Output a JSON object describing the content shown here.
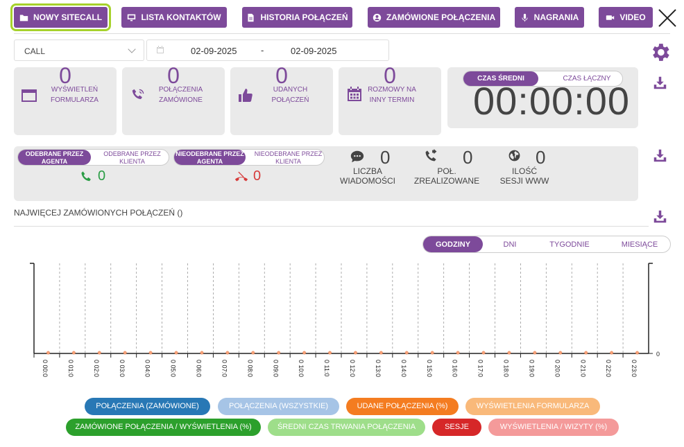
{
  "nav": {
    "new_sitecall": "NOWY SITECALL",
    "contacts": "LISTA KONTAKTÓW",
    "history": "HISTORIA POŁĄCZEŃ",
    "ordered": "ZAMÓWIONE POŁĄCZENIA",
    "recordings": "NAGRANIA",
    "video": "VIDEO"
  },
  "filters": {
    "type_selected": "CALL",
    "date_from": "02-09-2025",
    "date_separator": "-",
    "date_to": "02-09-2025"
  },
  "cards": [
    {
      "value": "0",
      "label": "WYŚWIETLEŃ FORMULARZA"
    },
    {
      "value": "0",
      "label": "POŁĄCZENIA ZAMÓWIONE"
    },
    {
      "value": "0",
      "label": "UDANYCH POŁĄCZEŃ"
    },
    {
      "value": "0",
      "label": "ROZMOWY NA INNY TERMIN"
    }
  ],
  "timer": {
    "avg_label": "CZAS ŚREDNI",
    "total_label": "CZAS ŁĄCZNY",
    "value": "00:00:00"
  },
  "answered": {
    "by_agent": "ODEBRANE PRZEZ AGENTA",
    "by_client": "ODEBRANE PRZEZ KLIENTA",
    "count": "0"
  },
  "unanswered": {
    "by_agent": "NIEODEBRANE PRZEZ AGENTA",
    "by_client": "NIEODEBRANE PRZEZ KLIENTA",
    "count": "0"
  },
  "counters": [
    {
      "value": "0",
      "label": "LICZBA WIADOMOŚCI"
    },
    {
      "value": "0",
      "label": "POŁ. ZREALIZOWANE"
    },
    {
      "value": "0",
      "label": "ILOŚĆ SESJI WWW"
    }
  ],
  "section_title": "NAJWIĘCEJ ZAMÓWIONYCH POŁĄCZEŃ ()",
  "period": {
    "hours": "GODZINY",
    "days": "DNI",
    "weeks": "TYGODNIE",
    "months": "MIESIĄCE"
  },
  "chart_data": {
    "type": "line",
    "categories": [
      "0 00:0",
      "0 01:0",
      "0 02:0",
      "0 03:0",
      "0 04:0",
      "0 05:0",
      "0 06:0",
      "0 07:0",
      "0 08:0",
      "0 09:0",
      "0 10:0",
      "0 11:0",
      "0 12:0",
      "0 13:0",
      "0 14:0",
      "0 15:0",
      "0 16:0",
      "0 17:0",
      "0 18:0",
      "0 19:0",
      "0 20:0",
      "0 21:0",
      "0 22:0",
      "0 23:0"
    ],
    "values": [
      0,
      0,
      0,
      0,
      0,
      0,
      0,
      0,
      0,
      0,
      0,
      0,
      0,
      0,
      0,
      0,
      0,
      0,
      0,
      0,
      0,
      0,
      0,
      0
    ],
    "right_tick": "0",
    "grid": "vertical dashed"
  },
  "legend": [
    {
      "label": "POŁĄCZENIA (ZAMÓWIONE)",
      "color": "#2878b5"
    },
    {
      "label": "POŁĄCZENIA (WSZYSTKIE)",
      "color": "#a6c4e6"
    },
    {
      "label": "UDANE POŁĄCZENIA (%)",
      "color": "#f47c20"
    },
    {
      "label": "WYŚWIETLENIA FORMULARZA",
      "color": "#f9b97a"
    },
    {
      "label": "ZAMÓWIONE POŁĄCZENIA / WYŚWIETLENIA (%)",
      "color": "#2ca02c"
    },
    {
      "label": "ŚREDNI CZAS TRWANIA POŁĄCZENIA",
      "color": "#9ede8a"
    },
    {
      "label": "SESJE",
      "color": "#d62728"
    },
    {
      "label": "WYŚWIETLENIA / WIZYTY (%)",
      "color": "#f49a9a"
    }
  ],
  "colors": {
    "accent": "#7d4a9a",
    "active_outline": "#a6d22b",
    "answered": "#2a9d45",
    "missed": "#d63a3a"
  }
}
